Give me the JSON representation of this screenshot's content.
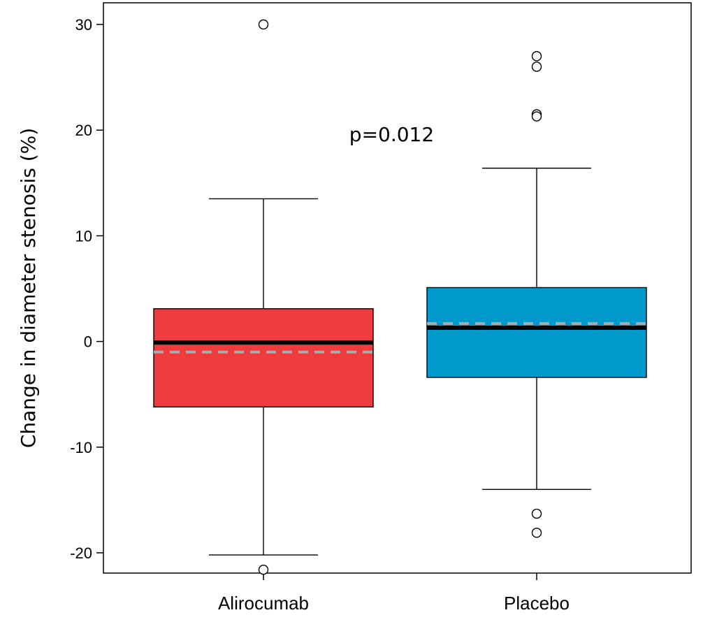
{
  "chart_data": {
    "type": "box",
    "ylabel": "Change in diameter stenosis (%)",
    "ylim": [
      -22,
      32
    ],
    "yticks": [
      30,
      20,
      10,
      0,
      -10,
      -20
    ],
    "categories": [
      "Alirocumab",
      "Placebo"
    ],
    "boxes": [
      {
        "category": "Alirocumab",
        "color": "#ee3b3b",
        "whisker_low": -20.2,
        "q1": -6.2,
        "median": -0.1,
        "mean": -1.0,
        "q3": 3.1,
        "whisker_high": 13.5,
        "outliers": [
          30,
          -21.6
        ]
      },
      {
        "category": "Placebo",
        "color": "#0099cc",
        "whisker_low": -14.0,
        "q1": -3.4,
        "median": 1.3,
        "mean": 1.7,
        "q3": 5.1,
        "whisker_high": 16.4,
        "outliers": [
          27,
          26,
          21.5,
          21.3,
          -16.3,
          -18.1
        ]
      }
    ],
    "annotations": [
      {
        "text": "p=0.012",
        "x_between": [
          0,
          1
        ],
        "y": 19.6
      }
    ],
    "grid": false,
    "legend": "none"
  }
}
